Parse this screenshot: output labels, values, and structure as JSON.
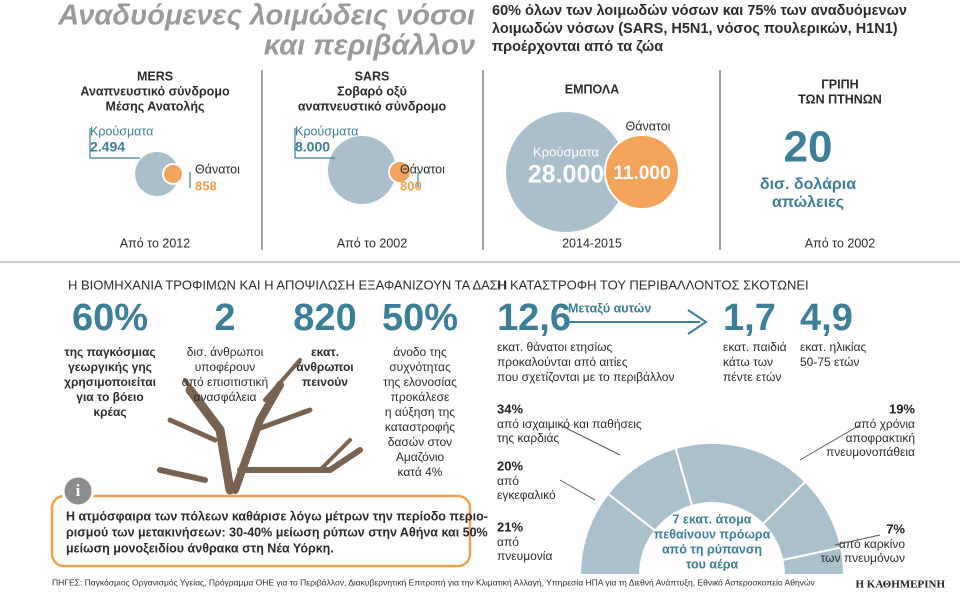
{
  "header": {
    "title": [
      "Αναδυόμενες λοιμώδεις νόσοι",
      "και περιβάλλον"
    ],
    "intro": [
      "60% όλων των λοιμωδών νόσων και 75% των αναδυόμενων",
      "λοιμωδών νόσων (SARS, H5N1, νόσος πουλερικών, H1N1)",
      "προέρχονται από τα ζώα"
    ]
  },
  "diseases": [
    {
      "title": [
        "MERS",
        "Αναπνευστικό σύνδρομο",
        "Μέσης Ανατολής"
      ],
      "cases_label": "Κρούσματα",
      "cases": "2.494",
      "deaths_label": "Θάνατοι",
      "deaths": "858",
      "period": "Από το 2012"
    },
    {
      "title": [
        "SARS",
        "Σοβαρό οξύ",
        "αναπνευστικό σύνδρομο"
      ],
      "cases_label": "Κρούσματα",
      "cases": "8.000",
      "deaths_label": "Θάνατοι",
      "deaths": "800",
      "period": "Από το 2002"
    },
    {
      "title": [
        "ΕΜΠΟΛΑ"
      ],
      "cases_label": "Κρούσματα",
      "cases": "28.000",
      "deaths_label": "Θάνατοι",
      "deaths": "11.000",
      "period": "2014-2015"
    },
    {
      "title": [
        "ΓΡΙΠΗ",
        "ΤΩΝ ΠΤΗΝΩΝ"
      ],
      "value": "20",
      "value_text": [
        "δισ. δολάρια",
        "απώλειες"
      ],
      "period": "Από το 2002"
    }
  ],
  "food": {
    "heading": "Η ΒΙΟΜΗΧΑΝΙΑ ΤΡΟΦΙΜΩΝ ΚΑΙ Η ΑΠΟΨΙΛΩΣΗ ΕΞΑΦΑΝΙΖΟΥΝ ΤΑ ΔΑΣΗ",
    "stats": [
      {
        "value": "60%",
        "text": [
          "της παγκόσμιας",
          "γεωργικής γης",
          "χρησιμοποιείται",
          "για το βόειο",
          "κρέας"
        ]
      },
      {
        "value": "2",
        "text": [
          "δισ. άνθρωποι",
          "υποφέρουν",
          "από επισιτιστική",
          "ανασφάλεια"
        ]
      },
      {
        "value": "820",
        "text": [
          "εκατ.",
          "άνθρωποι",
          "πεινούν"
        ]
      },
      {
        "value": "50%",
        "text": [
          "άνοδο της",
          "συχνότητας",
          "της ελονοσίας",
          "προκάλεσε",
          "η αύξηση της",
          "καταστροφής",
          "δασών στον",
          "Αμαζόνιο",
          "κατά 4%"
        ]
      }
    ]
  },
  "info": [
    "Η ατμόσφαιρα των πόλεων καθάρισε λόγω μέτρων την περίοδο περιο-",
    "ρισμού των μετακινήσεων: 30-40% μείωση ρύπων στην Αθήνα και 50%",
    "μείωση μονοξειδίου άνθρακα στη Νέα Υόρκη."
  ],
  "environment": {
    "heading": "Η ΚΑΤΑΣΤΡΟΦΗ ΤΟΥ ΠΕΡΙΒΑΛΛΟΝΤΟΣ ΣΚΟΤΩΝΕΙ",
    "arrow_label": "Μεταξύ αυτών",
    "stats": [
      {
        "value": "12,6",
        "text": [
          "εκατ. θάνατοι ετησίως",
          "προκαλούνται από αιτίες",
          "που σχετίζονται με το περιβάλλον"
        ]
      },
      {
        "value": "1,7",
        "text": [
          "εκατ. παιδιά",
          "κάτω των",
          "πέντε ετών"
        ]
      },
      {
        "value": "4,9",
        "text": [
          "εκατ. ηλικίας",
          "50-75 ετών"
        ]
      }
    ],
    "center": [
      "7 εκατ. άτομα",
      "πεθαίνουν πρόωρα",
      "από τη ρύπανση",
      "του αέρα"
    ],
    "causes": [
      {
        "value": "21%",
        "text": [
          "από",
          "πνευμονία"
        ]
      },
      {
        "value": "20%",
        "text": [
          "από",
          "εγκεφαλικό"
        ]
      },
      {
        "value": "34%",
        "text": [
          "από ισχαιμικό και παθήσεις",
          "της καρδιάς"
        ]
      },
      {
        "value": "19%",
        "text": [
          "από χρόνια",
          "αποφρακτική",
          "πνευμονοπάθεια"
        ]
      },
      {
        "value": "7%",
        "text": [
          "από καρκίνο",
          "των πνευμόνων"
        ]
      }
    ]
  },
  "footer": {
    "sources": "ΠΗΓΕΣ: Παγκόσμιος Οργανισμός Υγείας, Πρόγραμμα ΟΗΕ για το Περιβάλλον, Διακυβερνητική Επιτροπή για την Κλιματική Αλλαγή, Υπηρεσία ΗΠΑ για τη Διεθνή Ανάπτυξη, Εθνικό Αστεροσκοπείο Αθηνών",
    "brand": "Η ΚΑΘΗΜΕΡΙΝΗ"
  }
}
